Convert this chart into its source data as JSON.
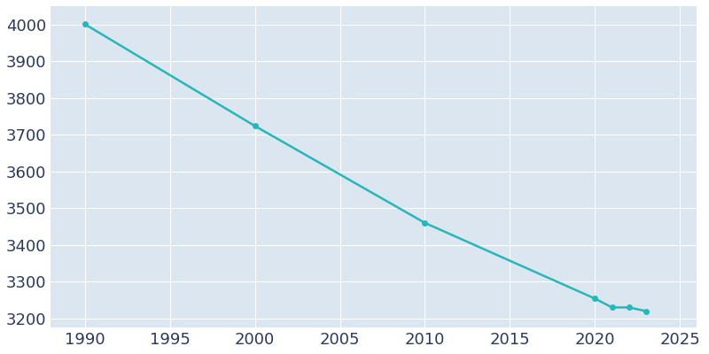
{
  "years": [
    1990,
    2000,
    2010,
    2020,
    2021,
    2022,
    2023
  ],
  "population": [
    4001,
    3724,
    3460,
    3254,
    3230,
    3230,
    3220
  ],
  "line_color": "#26b8b8",
  "marker_color": "#26b8b8",
  "axes_background_color": "#dce6f0",
  "fig_background_color": "#ffffff",
  "grid_color": "#ffffff",
  "tick_color": "#2b3a5c",
  "xlim": [
    1988,
    2026
  ],
  "ylim": [
    3175,
    4050
  ],
  "yticks": [
    3200,
    3300,
    3400,
    3500,
    3600,
    3700,
    3800,
    3900,
    4000
  ],
  "xticks": [
    1990,
    1995,
    2000,
    2005,
    2010,
    2015,
    2020,
    2025
  ],
  "tick_fontsize": 13,
  "linewidth": 1.8,
  "markersize": 4
}
